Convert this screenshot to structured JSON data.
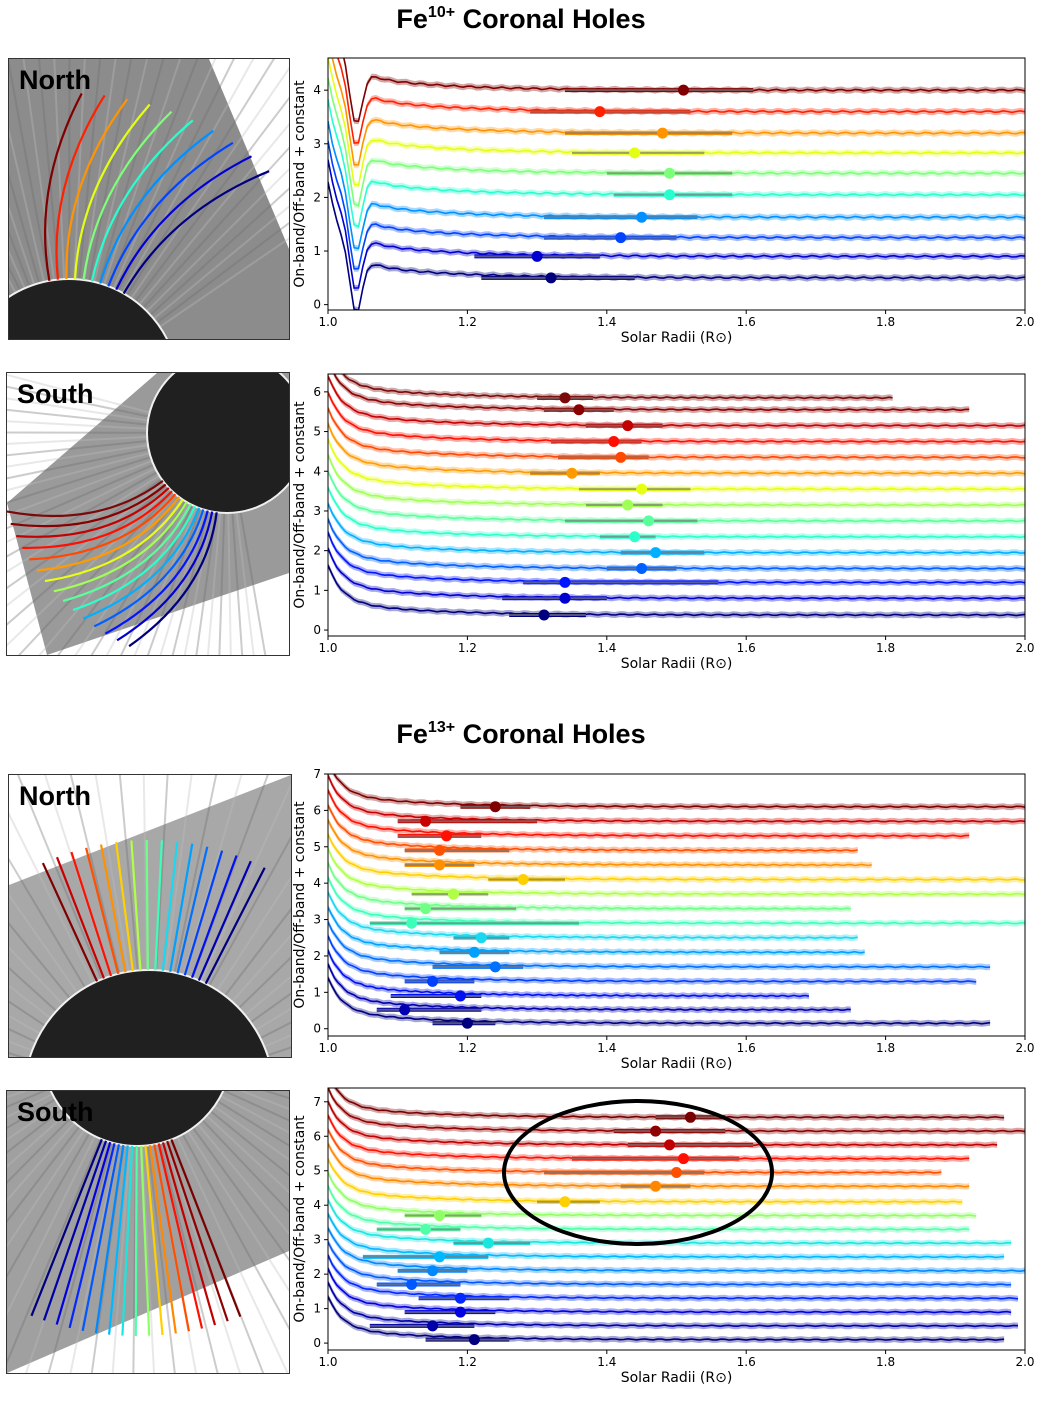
{
  "sections": [
    {
      "title_main": "Fe",
      "title_sup": "10+",
      "title_tail": " Coronal Holes"
    },
    {
      "title_main": "Fe",
      "title_sup": "13+",
      "title_tail": " Coronal Holes"
    }
  ],
  "labels": {
    "north": "North",
    "south": "South"
  },
  "colors": {
    "north_bg": "#8a8a8a",
    "south_bg": "#9a9a9a",
    "disk": "#202020",
    "limb": "#f0f0f0"
  },
  "chart_data": [
    {
      "type": "line",
      "id": "fe10-north",
      "xlabel": "Solar Radii (R⊙)",
      "ylabel": "On-band/Off-band + constant",
      "xlim": [
        1.0,
        2.0
      ],
      "ylim": [
        -0.1,
        4.6
      ],
      "xticks": [
        1.0,
        1.2,
        1.4,
        1.6,
        1.8,
        2.0
      ],
      "yticks": [
        0,
        1,
        2,
        3,
        4
      ],
      "series": [
        {
          "color": "#00007f",
          "offset": 0.5,
          "end": 2.0,
          "marker": 1.32,
          "err": [
            1.22,
            1.44
          ]
        },
        {
          "color": "#0000d1",
          "offset": 0.9,
          "end": 2.0,
          "marker": 1.3,
          "err": [
            1.21,
            1.39
          ]
        },
        {
          "color": "#0044ff",
          "offset": 1.25,
          "end": 2.0,
          "marker": 1.42,
          "err": [
            1.31,
            1.5
          ]
        },
        {
          "color": "#0090ff",
          "offset": 1.63,
          "end": 2.0,
          "marker": 1.45,
          "err": [
            1.31,
            1.53
          ]
        },
        {
          "color": "#29ffce",
          "offset": 2.05,
          "end": 2.0,
          "marker": 1.49,
          "err": [
            1.41,
            1.58
          ]
        },
        {
          "color": "#7dff7a",
          "offset": 2.45,
          "end": 2.0,
          "marker": 1.49,
          "err": [
            1.4,
            1.58
          ]
        },
        {
          "color": "#e4ff13",
          "offset": 2.83,
          "end": 2.0,
          "marker": 1.44,
          "err": [
            1.35,
            1.54
          ]
        },
        {
          "color": "#ff9400",
          "offset": 3.2,
          "end": 2.0,
          "marker": 1.48,
          "err": [
            1.34,
            1.58
          ]
        },
        {
          "color": "#ff2000",
          "offset": 3.6,
          "end": 2.0,
          "marker": 1.39,
          "err": [
            1.29,
            1.52
          ]
        },
        {
          "color": "#800000",
          "offset": 4.0,
          "end": 2.0,
          "marker": 1.51,
          "err": [
            1.34,
            1.61
          ]
        }
      ]
    },
    {
      "type": "line",
      "id": "fe10-south",
      "xlabel": "Solar Radii (R⊙)",
      "ylabel": "On-band/Off-band + constant",
      "xlim": [
        1.0,
        2.0
      ],
      "ylim": [
        -0.15,
        6.45
      ],
      "xticks": [
        1.0,
        1.2,
        1.4,
        1.6,
        1.8,
        2.0
      ],
      "yticks": [
        0,
        1,
        2,
        3,
        4,
        5,
        6
      ],
      "series": [
        {
          "color": "#00007f",
          "offset": 0.38,
          "end": 2.0,
          "marker": 1.31,
          "err": [
            1.26,
            1.37
          ]
        },
        {
          "color": "#0000d1",
          "offset": 0.8,
          "end": 2.0,
          "marker": 1.34,
          "err": [
            1.25,
            1.4
          ]
        },
        {
          "color": "#0014ff",
          "offset": 1.2,
          "end": 2.0,
          "marker": 1.34,
          "err": [
            1.28,
            1.56
          ]
        },
        {
          "color": "#0060ff",
          "offset": 1.55,
          "end": 2.0,
          "marker": 1.45,
          "err": [
            1.4,
            1.5
          ]
        },
        {
          "color": "#00b0ff",
          "offset": 1.95,
          "end": 2.0,
          "marker": 1.47,
          "err": [
            1.42,
            1.54
          ]
        },
        {
          "color": "#2dffca",
          "offset": 2.35,
          "end": 2.0,
          "marker": 1.44,
          "err": [
            1.39,
            1.47
          ]
        },
        {
          "color": "#5aff9d",
          "offset": 2.75,
          "end": 2.0,
          "marker": 1.46,
          "err": [
            1.34,
            1.53
          ]
        },
        {
          "color": "#a0ff57",
          "offset": 3.15,
          "end": 2.0,
          "marker": 1.43,
          "err": [
            1.37,
            1.48
          ]
        },
        {
          "color": "#e6ff12",
          "offset": 3.55,
          "end": 2.0,
          "marker": 1.45,
          "err": [
            1.36,
            1.52
          ]
        },
        {
          "color": "#ff9b00",
          "offset": 3.95,
          "end": 2.0,
          "marker": 1.35,
          "err": [
            1.29,
            1.39
          ]
        },
        {
          "color": "#ff4800",
          "offset": 4.35,
          "end": 2.0,
          "marker": 1.42,
          "err": [
            1.33,
            1.46
          ]
        },
        {
          "color": "#ff0f00",
          "offset": 4.75,
          "end": 2.0,
          "marker": 1.41,
          "err": [
            1.32,
            1.45
          ]
        },
        {
          "color": "#c40000",
          "offset": 5.15,
          "end": 2.0,
          "marker": 1.43,
          "err": [
            1.37,
            1.48
          ]
        },
        {
          "color": "#8a0000",
          "offset": 5.55,
          "end": 1.92,
          "marker": 1.36,
          "err": [
            1.31,
            1.41
          ]
        },
        {
          "color": "#7a0a0a",
          "offset": 5.85,
          "end": 1.81,
          "marker": 1.34,
          "err": [
            1.3,
            1.38
          ]
        }
      ]
    },
    {
      "type": "line",
      "id": "fe13-north",
      "xlabel": "Solar Radii (R⊙)",
      "ylabel": "On-band/Off-band + constant",
      "xlim": [
        1.0,
        2.0
      ],
      "ylim": [
        -0.2,
        7.0
      ],
      "xticks": [
        1.0,
        1.2,
        1.4,
        1.6,
        1.8,
        2.0
      ],
      "yticks": [
        0,
        1,
        2,
        3,
        4,
        5,
        6,
        7
      ],
      "series": [
        {
          "color": "#00007f",
          "offset": 0.15,
          "end": 1.95,
          "marker": 1.2,
          "err": [
            1.15,
            1.24
          ]
        },
        {
          "color": "#0000b0",
          "offset": 0.52,
          "end": 1.75,
          "marker": 1.11,
          "err": [
            1.07,
            1.22
          ]
        },
        {
          "color": "#0010f0",
          "offset": 0.9,
          "end": 1.69,
          "marker": 1.19,
          "err": [
            1.09,
            1.22
          ]
        },
        {
          "color": "#0040ff",
          "offset": 1.3,
          "end": 1.93,
          "marker": 1.15,
          "err": [
            1.11,
            1.21
          ]
        },
        {
          "color": "#0070ff",
          "offset": 1.7,
          "end": 1.95,
          "marker": 1.24,
          "err": [
            1.15,
            1.28
          ]
        },
        {
          "color": "#00a0ff",
          "offset": 2.1,
          "end": 1.77,
          "marker": 1.21,
          "err": [
            1.16,
            1.26
          ]
        },
        {
          "color": "#1ad8f0",
          "offset": 2.5,
          "end": 1.76,
          "marker": 1.22,
          "err": [
            1.18,
            1.26
          ]
        },
        {
          "color": "#3cffba",
          "offset": 2.9,
          "end": 2.0,
          "marker": 1.12,
          "err": [
            1.06,
            1.36
          ]
        },
        {
          "color": "#70ff86",
          "offset": 3.3,
          "end": 1.75,
          "marker": 1.14,
          "err": [
            1.11,
            1.27
          ]
        },
        {
          "color": "#b0ff47",
          "offset": 3.7,
          "end": 2.0,
          "marker": 1.18,
          "err": [
            1.12,
            1.23
          ]
        },
        {
          "color": "#ffd000",
          "offset": 4.1,
          "end": 2.0,
          "marker": 1.28,
          "err": [
            1.23,
            1.34
          ]
        },
        {
          "color": "#ff9000",
          "offset": 4.5,
          "end": 1.78,
          "marker": 1.16,
          "err": [
            1.11,
            1.21
          ]
        },
        {
          "color": "#ff5000",
          "offset": 4.9,
          "end": 1.76,
          "marker": 1.16,
          "err": [
            1.11,
            1.26
          ]
        },
        {
          "color": "#ff1000",
          "offset": 5.3,
          "end": 1.92,
          "marker": 1.17,
          "err": [
            1.1,
            1.22
          ]
        },
        {
          "color": "#c80000",
          "offset": 5.7,
          "end": 2.0,
          "marker": 1.14,
          "err": [
            1.1,
            1.3
          ]
        },
        {
          "color": "#800000",
          "offset": 6.1,
          "end": 2.0,
          "marker": 1.24,
          "err": [
            1.19,
            1.29
          ]
        }
      ]
    },
    {
      "type": "line",
      "id": "fe13-south",
      "xlabel": "Solar Radii (R⊙)",
      "ylabel": "On-band/Off-band + constant",
      "xlim": [
        1.0,
        2.0
      ],
      "ylim": [
        -0.2,
        7.4
      ],
      "xticks": [
        1.0,
        1.2,
        1.4,
        1.6,
        1.8,
        2.0
      ],
      "yticks": [
        0,
        1,
        2,
        3,
        4,
        5,
        6,
        7
      ],
      "series": [
        {
          "color": "#00007f",
          "offset": 0.1,
          "end": 1.97,
          "marker": 1.21,
          "err": [
            1.14,
            1.26
          ]
        },
        {
          "color": "#0000a8",
          "offset": 0.5,
          "end": 1.99,
          "marker": 1.15,
          "err": [
            1.06,
            1.21
          ]
        },
        {
          "color": "#0000e0",
          "offset": 0.9,
          "end": 1.98,
          "marker": 1.19,
          "err": [
            1.11,
            1.24
          ]
        },
        {
          "color": "#0028ff",
          "offset": 1.3,
          "end": 1.99,
          "marker": 1.19,
          "err": [
            1.13,
            1.26
          ]
        },
        {
          "color": "#0058ff",
          "offset": 1.7,
          "end": 1.98,
          "marker": 1.12,
          "err": [
            1.07,
            1.19
          ]
        },
        {
          "color": "#0088ff",
          "offset": 2.1,
          "end": 2.0,
          "marker": 1.15,
          "err": [
            1.1,
            1.2
          ]
        },
        {
          "color": "#00b8ff",
          "offset": 2.5,
          "end": 1.97,
          "marker": 1.16,
          "err": [
            1.05,
            1.23
          ]
        },
        {
          "color": "#1ae6e0",
          "offset": 2.9,
          "end": 1.98,
          "marker": 1.23,
          "err": [
            1.18,
            1.29
          ]
        },
        {
          "color": "#50ffaa",
          "offset": 3.3,
          "end": 1.92,
          "marker": 1.14,
          "err": [
            1.07,
            1.19
          ]
        },
        {
          "color": "#90ff66",
          "offset": 3.7,
          "end": 1.93,
          "marker": 1.16,
          "err": [
            1.11,
            1.22
          ]
        },
        {
          "color": "#ffd000",
          "offset": 4.1,
          "end": 1.91,
          "marker": 1.34,
          "err": [
            1.3,
            1.39
          ]
        },
        {
          "color": "#ff8800",
          "offset": 4.55,
          "end": 1.92,
          "marker": 1.47,
          "err": [
            1.42,
            1.52
          ]
        },
        {
          "color": "#ff5000",
          "offset": 4.95,
          "end": 1.88,
          "marker": 1.5,
          "err": [
            1.31,
            1.54
          ]
        },
        {
          "color": "#ff1000",
          "offset": 5.35,
          "end": 1.92,
          "marker": 1.51,
          "err": [
            1.35,
            1.59
          ]
        },
        {
          "color": "#c00000",
          "offset": 5.75,
          "end": 1.96,
          "marker": 1.49,
          "err": [
            1.43,
            1.61
          ]
        },
        {
          "color": "#900000",
          "offset": 6.15,
          "end": 2.0,
          "marker": 1.47,
          "err": [
            1.41,
            1.57
          ]
        },
        {
          "color": "#7a0000",
          "offset": 6.55,
          "end": 1.97,
          "marker": 1.52,
          "err": [
            1.47,
            1.57
          ]
        }
      ]
    }
  ]
}
